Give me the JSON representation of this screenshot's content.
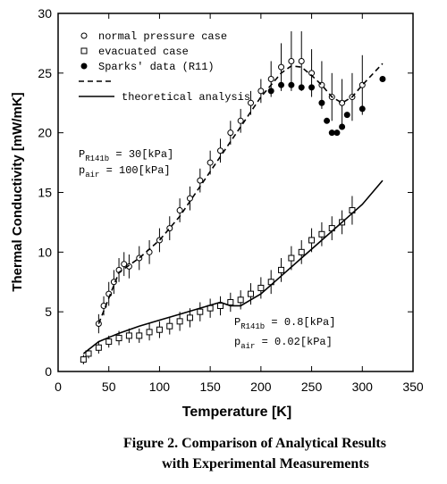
{
  "chart_data": {
    "type": "scatter",
    "x_label": "Temperature   [K]",
    "y_label": "Thermal Conductivity [mW/mK]",
    "xlim": [
      0,
      350
    ],
    "xticks": [
      0,
      50,
      100,
      150,
      200,
      250,
      300,
      350
    ],
    "ylim": [
      0,
      30
    ],
    "yticks": [
      0,
      5,
      10,
      15,
      20,
      25,
      30
    ],
    "legend": "top-left",
    "series": [
      {
        "name": "normal pressure case",
        "marker": "open-circle",
        "color": "#000000",
        "x": [
          40,
          45,
          50,
          55,
          60,
          65,
          70,
          80,
          90,
          100,
          110,
          120,
          130,
          140,
          150,
          160,
          170,
          180,
          190,
          200,
          210,
          220,
          230,
          240,
          250,
          260,
          270,
          280,
          290,
          300
        ],
        "values": [
          4,
          5.5,
          6.5,
          7.5,
          8.5,
          9,
          8.8,
          9.5,
          10,
          11,
          12,
          13.5,
          14.5,
          16,
          17.5,
          18.5,
          20,
          21,
          22.5,
          23.5,
          24.5,
          25.5,
          26,
          26,
          25,
          24,
          23,
          22.5,
          23,
          24
        ],
        "errors": [
          0.8,
          0.8,
          1,
          1,
          1,
          1,
          1,
          1,
          1,
          1,
          1,
          1,
          1,
          1,
          1,
          1,
          1,
          1,
          1,
          1,
          1.5,
          2,
          2.5,
          2.5,
          2,
          2,
          2,
          2,
          2,
          2.5
        ]
      },
      {
        "name": "evacuated case",
        "marker": "open-square",
        "color": "#000000",
        "x": [
          25,
          30,
          40,
          50,
          60,
          70,
          80,
          90,
          100,
          110,
          120,
          130,
          140,
          150,
          160,
          170,
          180,
          190,
          200,
          210,
          220,
          230,
          240,
          250,
          260,
          270,
          280,
          290
        ],
        "values": [
          1,
          1.5,
          2,
          2.5,
          2.8,
          3,
          3,
          3.3,
          3.5,
          3.8,
          4.2,
          4.5,
          5,
          5.3,
          5.5,
          5.8,
          6,
          6.5,
          7,
          7.5,
          8.5,
          9.5,
          10,
          11,
          11.5,
          12,
          12.5,
          13.5
        ],
        "errors": [
          0.4,
          0.4,
          0.5,
          0.5,
          0.6,
          0.6,
          0.6,
          0.7,
          0.7,
          0.7,
          0.8,
          0.8,
          0.8,
          0.8,
          0.8,
          0.8,
          0.8,
          0.9,
          0.9,
          1,
          1,
          1,
          1,
          1,
          1,
          1,
          1,
          1.2
        ]
      },
      {
        "name": "Sparks' data (R11)",
        "marker": "filled-circle",
        "color": "#000000",
        "x": [
          210,
          220,
          230,
          240,
          250,
          260,
          265,
          270,
          275,
          280,
          285,
          300,
          320
        ],
        "values": [
          23.5,
          24,
          24,
          23.8,
          23.8,
          22.5,
          21,
          20,
          20,
          20.5,
          21.5,
          22,
          24.5
        ]
      },
      {
        "marker": "dashed-line",
        "color": "#000000",
        "x": [
          40,
          60,
          80,
          100,
          120,
          140,
          160,
          180,
          200,
          220,
          230,
          240,
          250,
          260,
          270,
          280,
          290,
          300,
          320
        ],
        "values": [
          4,
          8.3,
          9.5,
          11,
          13,
          15.5,
          18,
          20.5,
          23,
          25,
          25.6,
          25.5,
          24.8,
          24,
          23,
          22.5,
          23,
          24,
          25.8
        ]
      },
      {
        "name": "theoretical analysis",
        "marker": "solid-line",
        "color": "#000000",
        "x": [
          25,
          40,
          60,
          80,
          100,
          120,
          140,
          160,
          170,
          180,
          200,
          220,
          240,
          260,
          280,
          300,
          320
        ],
        "values": [
          1.5,
          2.5,
          3.2,
          3.8,
          4.3,
          4.8,
          5.3,
          5.8,
          5.5,
          5.5,
          6.5,
          8,
          9.5,
          11,
          12.5,
          14,
          16
        ]
      }
    ],
    "annotations": [
      {
        "main": "P",
        "sub": "R141b",
        "rest": " = 30[kPa]"
      },
      {
        "main": "p",
        "sub": "air",
        "rest": " = 100[kPa]"
      },
      {
        "main": "P",
        "sub": "R141b",
        "rest": " = 0.8[kPa]"
      },
      {
        "main": "p",
        "sub": "air",
        "rest": " = 0.02[kPa]"
      }
    ],
    "caption": [
      "Figure 2. Comparison of Analytical Results",
      "with Experimental Measurements"
    ]
  }
}
